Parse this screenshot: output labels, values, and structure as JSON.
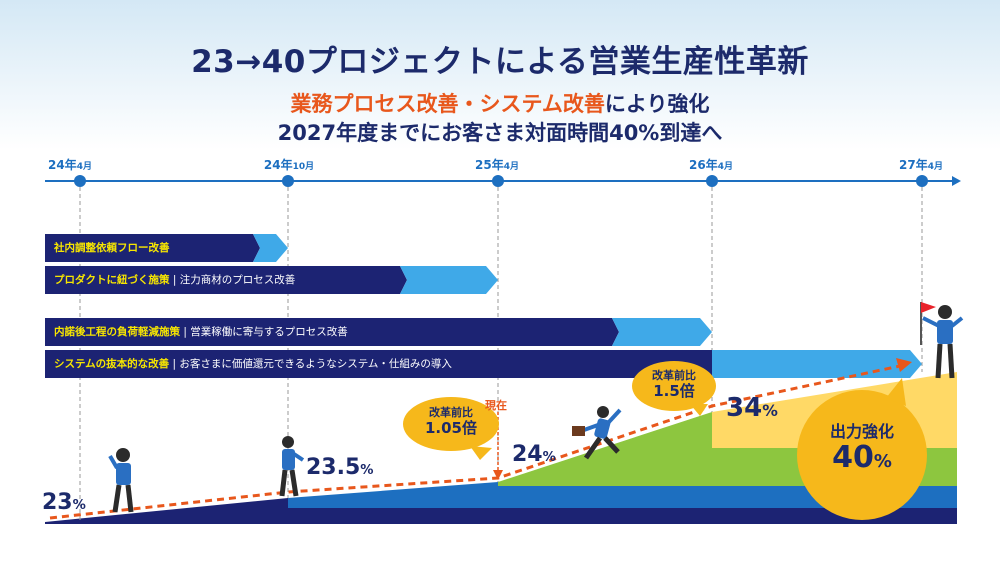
{
  "title": "23→40プロジェクトによる営業生産性革新",
  "subtitle1_highlight": "業務プロセス改善・システム改善",
  "subtitle1_rest": "により強化",
  "subtitle2": "2027年度までにお客さま対面時間40%到達へ",
  "timeline": [
    {
      "year": "24年",
      "month": "4月"
    },
    {
      "year": "24年",
      "month": "10月"
    },
    {
      "year": "25年",
      "month": "4月"
    },
    {
      "year": "26年",
      "month": "4月"
    },
    {
      "year": "27年",
      "month": "4月"
    }
  ],
  "initiatives": [
    {
      "title": "社内調整依頼フロー改善",
      "desc": ""
    },
    {
      "title": "プロダクトに紐づく施策",
      "desc": "注力商材のプロセス改善"
    },
    {
      "title": "内諾後工程の負荷軽減施策",
      "desc": "営業稼働に寄与するプロセス改善"
    },
    {
      "title": "システムの抜本的な改善",
      "desc": "お客さまに価値還元できるようなシステム・仕組みの導入"
    }
  ],
  "now_label": "現在",
  "milestones": [
    {
      "value": "23",
      "unit": "%"
    },
    {
      "value": "23.5",
      "unit": "%"
    },
    {
      "value": "24",
      "unit": "%"
    },
    {
      "value": "34",
      "unit": "%"
    }
  ],
  "bubbles": [
    {
      "line1": "改革前比",
      "line2": "1.05倍"
    },
    {
      "line1": "改革前比",
      "line2": "1.5倍"
    }
  ],
  "goal": {
    "line1": "出力強化",
    "value": "40",
    "unit": "%"
  },
  "colors": {
    "navy": "#1c2373",
    "light_blue": "#3fa9e8",
    "timeline_blue": "#1d6fc0",
    "green": "#8dc63f",
    "yellow": "#ffd966",
    "orange_arrow": "#e8571c",
    "bubble": "#f6b81b"
  }
}
